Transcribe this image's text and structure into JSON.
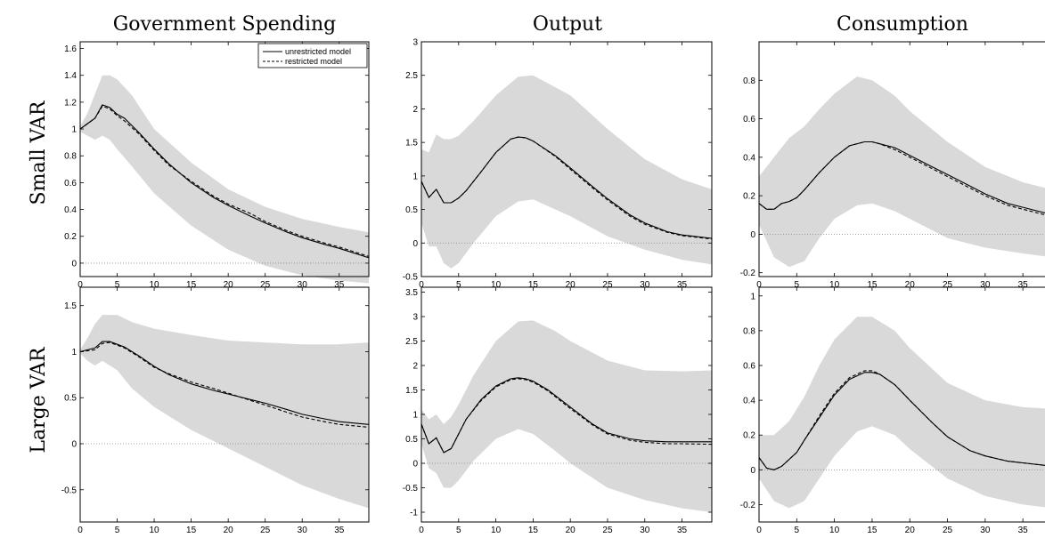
{
  "column_titles": [
    "Government Spending",
    "Output",
    "Consumption"
  ],
  "row_titles": [
    "Small VAR",
    "Large VAR"
  ],
  "legend": {
    "position": "top-right of first panel",
    "entries": [
      {
        "label": "unrestricted model",
        "style": "solid"
      },
      {
        "label": "restricted model",
        "style": "dashed"
      }
    ]
  },
  "colors": {
    "band": "#d9d9d9",
    "line": "#000000",
    "zero_line": "#888888"
  },
  "chart_data": [
    {
      "type": "line",
      "row": "Small VAR",
      "column": "Government Spending",
      "xlim": [
        0,
        39
      ],
      "ylim": [
        -0.1,
        1.65
      ],
      "xticks": [
        0,
        5,
        10,
        15,
        20,
        25,
        30,
        35
      ],
      "yticks": [
        0,
        0.2,
        0.4,
        0.6,
        0.8,
        1,
        1.2,
        1.4,
        1.6
      ],
      "ytick_labels": [
        "0",
        "0.2",
        "0.4",
        "0.6",
        "0.8",
        "1",
        "1.2",
        "1.4",
        "1.6"
      ],
      "band_x": [
        0,
        1,
        2,
        3,
        4,
        5,
        7,
        10,
        15,
        20,
        25,
        30,
        35,
        39
      ],
      "band_upper": [
        1.02,
        1.12,
        1.26,
        1.4,
        1.4,
        1.37,
        1.25,
        1.0,
        0.75,
        0.55,
        0.42,
        0.33,
        0.27,
        0.23
      ],
      "band_lower": [
        0.98,
        0.95,
        0.92,
        0.95,
        0.92,
        0.85,
        0.72,
        0.52,
        0.28,
        0.1,
        -0.02,
        -0.09,
        -0.13,
        -0.15
      ],
      "series": [
        {
          "name": "unrestricted model",
          "style": "solid",
          "x": [
            0,
            1,
            2,
            3,
            4,
            5,
            6,
            8,
            10,
            12,
            15,
            18,
            20,
            23,
            25,
            28,
            30,
            33,
            35,
            39
          ],
          "y": [
            1.0,
            1.04,
            1.08,
            1.18,
            1.16,
            1.11,
            1.08,
            0.97,
            0.85,
            0.74,
            0.6,
            0.49,
            0.43,
            0.35,
            0.3,
            0.23,
            0.19,
            0.14,
            0.11,
            0.04
          ]
        },
        {
          "name": "restricted model",
          "style": "dashed",
          "x": [
            0,
            1,
            2,
            3,
            4,
            5,
            6,
            8,
            10,
            12,
            15,
            18,
            20,
            23,
            25,
            28,
            30,
            33,
            35,
            39
          ],
          "y": [
            1.0,
            1.04,
            1.08,
            1.17,
            1.15,
            1.1,
            1.06,
            0.96,
            0.84,
            0.73,
            0.61,
            0.5,
            0.44,
            0.37,
            0.31,
            0.24,
            0.2,
            0.15,
            0.12,
            0.05
          ]
        }
      ]
    },
    {
      "type": "line",
      "row": "Small VAR",
      "column": "Output",
      "xlim": [
        0,
        39
      ],
      "ylim": [
        -0.5,
        3
      ],
      "xticks": [
        0,
        5,
        10,
        15,
        20,
        25,
        30,
        35
      ],
      "yticks": [
        -0.5,
        0,
        0.5,
        1,
        1.5,
        2,
        2.5,
        3
      ],
      "ytick_labels": [
        "-0.5",
        "0",
        "0.5",
        "1",
        "1.5",
        "2",
        "2.5",
        "3"
      ],
      "band_x": [
        0,
        1,
        2,
        3,
        4,
        5,
        7,
        10,
        13,
        15,
        20,
        25,
        30,
        35,
        39
      ],
      "band_upper": [
        1.4,
        1.35,
        1.62,
        1.55,
        1.55,
        1.6,
        1.82,
        2.2,
        2.48,
        2.5,
        2.2,
        1.7,
        1.25,
        0.95,
        0.8
      ],
      "band_lower": [
        0.3,
        -0.05,
        -0.05,
        -0.3,
        -0.38,
        -0.3,
        0.0,
        0.4,
        0.62,
        0.65,
        0.4,
        0.1,
        -0.1,
        -0.25,
        -0.32
      ],
      "series": [
        {
          "name": "unrestricted model",
          "style": "solid",
          "x": [
            0,
            1,
            2,
            3,
            4,
            5,
            6,
            8,
            10,
            12,
            13,
            14,
            15,
            18,
            20,
            23,
            25,
            28,
            30,
            33,
            35,
            39
          ],
          "y": [
            0.92,
            0.68,
            0.8,
            0.6,
            0.6,
            0.67,
            0.78,
            1.06,
            1.35,
            1.55,
            1.58,
            1.57,
            1.52,
            1.3,
            1.12,
            0.84,
            0.66,
            0.42,
            0.3,
            0.17,
            0.12,
            0.07
          ]
        },
        {
          "name": "restricted model",
          "style": "dashed",
          "x": [
            0,
            1,
            2,
            3,
            4,
            5,
            6,
            8,
            10,
            12,
            13,
            14,
            15,
            18,
            20,
            23,
            25,
            28,
            30,
            33,
            35,
            39
          ],
          "y": [
            0.92,
            0.68,
            0.8,
            0.6,
            0.6,
            0.67,
            0.78,
            1.06,
            1.35,
            1.55,
            1.58,
            1.57,
            1.52,
            1.29,
            1.1,
            0.82,
            0.64,
            0.4,
            0.28,
            0.16,
            0.11,
            0.06
          ]
        }
      ]
    },
    {
      "type": "line",
      "row": "Small VAR",
      "column": "Consumption",
      "xlim": [
        0,
        39
      ],
      "ylim": [
        -0.22,
        1.0
      ],
      "xticks": [
        0,
        5,
        10,
        15,
        20,
        25,
        30,
        35
      ],
      "yticks": [
        -0.2,
        0,
        0.2,
        0.4,
        0.6,
        0.8
      ],
      "ytick_labels": [
        "-0.2",
        "0",
        "0.2",
        "0.4",
        "0.6",
        "0.8"
      ],
      "band_x": [
        0,
        2,
        4,
        6,
        8,
        10,
        13,
        15,
        18,
        20,
        25,
        30,
        35,
        39
      ],
      "band_upper": [
        0.3,
        0.4,
        0.5,
        0.56,
        0.65,
        0.73,
        0.82,
        0.8,
        0.72,
        0.64,
        0.48,
        0.35,
        0.27,
        0.23
      ],
      "band_lower": [
        0.05,
        -0.12,
        -0.17,
        -0.14,
        -0.02,
        0.08,
        0.15,
        0.16,
        0.12,
        0.08,
        -0.02,
        -0.07,
        -0.1,
        -0.12
      ],
      "series": [
        {
          "name": "unrestricted model",
          "style": "solid",
          "x": [
            0,
            1,
            2,
            3,
            4,
            5,
            6,
            8,
            10,
            12,
            14,
            15,
            16,
            18,
            20,
            23,
            25,
            28,
            30,
            33,
            35,
            39
          ],
          "y": [
            0.16,
            0.13,
            0.13,
            0.16,
            0.17,
            0.19,
            0.23,
            0.32,
            0.4,
            0.46,
            0.48,
            0.48,
            0.47,
            0.45,
            0.41,
            0.35,
            0.31,
            0.25,
            0.21,
            0.16,
            0.14,
            0.1
          ]
        },
        {
          "name": "restricted model",
          "style": "dashed",
          "x": [
            0,
            1,
            2,
            3,
            4,
            5,
            6,
            8,
            10,
            12,
            14,
            15,
            16,
            18,
            20,
            23,
            25,
            28,
            30,
            33,
            35,
            39
          ],
          "y": [
            0.16,
            0.13,
            0.13,
            0.16,
            0.17,
            0.19,
            0.23,
            0.32,
            0.4,
            0.46,
            0.48,
            0.48,
            0.47,
            0.44,
            0.4,
            0.34,
            0.3,
            0.24,
            0.2,
            0.15,
            0.13,
            0.09
          ]
        }
      ]
    },
    {
      "type": "line",
      "row": "Large VAR",
      "column": "Government Spending",
      "xlim": [
        0,
        39
      ],
      "ylim": [
        -0.85,
        1.7
      ],
      "xticks": [
        0,
        5,
        10,
        15,
        20,
        25,
        30,
        35
      ],
      "yticks": [
        -0.5,
        0,
        0.5,
        1,
        1.5
      ],
      "ytick_labels": [
        "-0.5",
        "0",
        "0.5",
        "1",
        "1.5"
      ],
      "band_x": [
        0,
        1,
        2,
        3,
        4,
        5,
        7,
        10,
        15,
        20,
        25,
        30,
        35,
        39
      ],
      "band_upper": [
        1.02,
        1.15,
        1.3,
        1.4,
        1.4,
        1.4,
        1.32,
        1.25,
        1.18,
        1.12,
        1.1,
        1.08,
        1.08,
        1.1
      ],
      "band_lower": [
        0.98,
        0.9,
        0.85,
        0.9,
        0.85,
        0.8,
        0.6,
        0.4,
        0.15,
        -0.05,
        -0.25,
        -0.45,
        -0.6,
        -0.7
      ],
      "series": [
        {
          "name": "unrestricted model",
          "style": "solid",
          "x": [
            0,
            1,
            2,
            3,
            4,
            5,
            6,
            8,
            10,
            12,
            15,
            18,
            20,
            23,
            25,
            28,
            30,
            33,
            35,
            39
          ],
          "y": [
            1.0,
            1.02,
            1.04,
            1.11,
            1.11,
            1.08,
            1.05,
            0.95,
            0.84,
            0.75,
            0.65,
            0.58,
            0.54,
            0.48,
            0.44,
            0.37,
            0.32,
            0.27,
            0.24,
            0.21
          ]
        },
        {
          "name": "restricted model",
          "style": "dashed",
          "x": [
            0,
            1,
            2,
            3,
            4,
            5,
            6,
            8,
            10,
            12,
            15,
            18,
            20,
            23,
            25,
            28,
            30,
            33,
            35,
            39
          ],
          "y": [
            1.0,
            1.01,
            1.02,
            1.09,
            1.1,
            1.07,
            1.04,
            0.94,
            0.83,
            0.76,
            0.67,
            0.6,
            0.55,
            0.47,
            0.42,
            0.34,
            0.29,
            0.24,
            0.21,
            0.18
          ]
        }
      ]
    },
    {
      "type": "line",
      "row": "Large VAR",
      "column": "Output",
      "xlim": [
        0,
        39
      ],
      "ylim": [
        -1.2,
        3.6
      ],
      "xticks": [
        0,
        5,
        10,
        15,
        20,
        25,
        30,
        35
      ],
      "yticks": [
        -1,
        -0.5,
        0,
        0.5,
        1,
        1.5,
        2,
        2.5,
        3,
        3.5
      ],
      "ytick_labels": [
        "-1",
        "-0.5",
        "0",
        "0.5",
        "1",
        "1.5",
        "2",
        "2.5",
        "3",
        "3.5"
      ],
      "band_x": [
        0,
        1,
        2,
        3,
        4,
        5,
        7,
        10,
        13,
        15,
        18,
        20,
        25,
        30,
        35,
        39
      ],
      "band_upper": [
        1.1,
        0.9,
        1.0,
        0.8,
        0.95,
        1.2,
        1.8,
        2.5,
        2.9,
        2.92,
        2.7,
        2.5,
        2.1,
        1.9,
        1.88,
        1.9
      ],
      "band_lower": [
        0.4,
        -0.1,
        -0.2,
        -0.5,
        -0.5,
        -0.35,
        0.05,
        0.5,
        0.7,
        0.6,
        0.25,
        0.0,
        -0.5,
        -0.75,
        -0.92,
        -1.0
      ],
      "series": [
        {
          "name": "unrestricted model",
          "style": "solid",
          "x": [
            0,
            1,
            2,
            3,
            4,
            5,
            6,
            8,
            10,
            12,
            13,
            14,
            15,
            17,
            20,
            23,
            25,
            28,
            30,
            33,
            35,
            39
          ],
          "y": [
            0.8,
            0.4,
            0.52,
            0.22,
            0.3,
            0.6,
            0.9,
            1.3,
            1.58,
            1.73,
            1.75,
            1.73,
            1.68,
            1.5,
            1.15,
            0.8,
            0.62,
            0.5,
            0.46,
            0.44,
            0.44,
            0.44
          ]
        },
        {
          "name": "restricted model",
          "style": "dashed",
          "x": [
            0,
            1,
            2,
            3,
            4,
            5,
            6,
            8,
            10,
            12,
            13,
            14,
            15,
            17,
            20,
            23,
            25,
            28,
            30,
            33,
            35,
            39
          ],
          "y": [
            0.8,
            0.4,
            0.52,
            0.22,
            0.3,
            0.6,
            0.9,
            1.28,
            1.56,
            1.71,
            1.73,
            1.71,
            1.66,
            1.48,
            1.12,
            0.78,
            0.6,
            0.47,
            0.43,
            0.4,
            0.4,
            0.39
          ]
        }
      ]
    },
    {
      "type": "line",
      "row": "Large VAR",
      "column": "Consumption",
      "xlim": [
        0,
        39
      ],
      "ylim": [
        -0.3,
        1.05
      ],
      "xticks": [
        0,
        5,
        10,
        15,
        20,
        25,
        30,
        35
      ],
      "yticks": [
        -0.2,
        0,
        0.2,
        0.4,
        0.6,
        0.8,
        1
      ],
      "ytick_labels": [
        "-0.2",
        "0",
        "0.2",
        "0.4",
        "0.6",
        "0.8",
        "1"
      ],
      "band_x": [
        0,
        2,
        4,
        6,
        8,
        10,
        13,
        15,
        18,
        20,
        25,
        30,
        35,
        39
      ],
      "band_upper": [
        0.2,
        0.2,
        0.28,
        0.42,
        0.6,
        0.75,
        0.88,
        0.88,
        0.8,
        0.7,
        0.5,
        0.4,
        0.36,
        0.35
      ],
      "band_lower": [
        -0.05,
        -0.18,
        -0.22,
        -0.18,
        -0.05,
        0.08,
        0.22,
        0.25,
        0.2,
        0.12,
        -0.05,
        -0.15,
        -0.2,
        -0.22
      ],
      "series": [
        {
          "name": "unrestricted model",
          "style": "solid",
          "x": [
            0,
            1,
            2,
            3,
            4,
            5,
            6,
            8,
            10,
            12,
            14,
            15,
            16,
            18,
            20,
            23,
            25,
            28,
            30,
            33,
            35,
            39
          ],
          "y": [
            0.07,
            0.01,
            0.0,
            0.02,
            0.06,
            0.1,
            0.17,
            0.3,
            0.43,
            0.52,
            0.56,
            0.56,
            0.55,
            0.49,
            0.4,
            0.27,
            0.19,
            0.11,
            0.08,
            0.05,
            0.04,
            0.02
          ]
        },
        {
          "name": "restricted model",
          "style": "dashed",
          "x": [
            0,
            1,
            2,
            3,
            4,
            5,
            6,
            8,
            10,
            12,
            14,
            15,
            16,
            18,
            20,
            23,
            25,
            28,
            30,
            33,
            35,
            39
          ],
          "y": [
            0.07,
            0.01,
            0.0,
            0.02,
            0.06,
            0.1,
            0.17,
            0.31,
            0.44,
            0.53,
            0.57,
            0.57,
            0.55,
            0.49,
            0.4,
            0.27,
            0.19,
            0.11,
            0.08,
            0.05,
            0.04,
            0.02
          ]
        }
      ]
    }
  ]
}
